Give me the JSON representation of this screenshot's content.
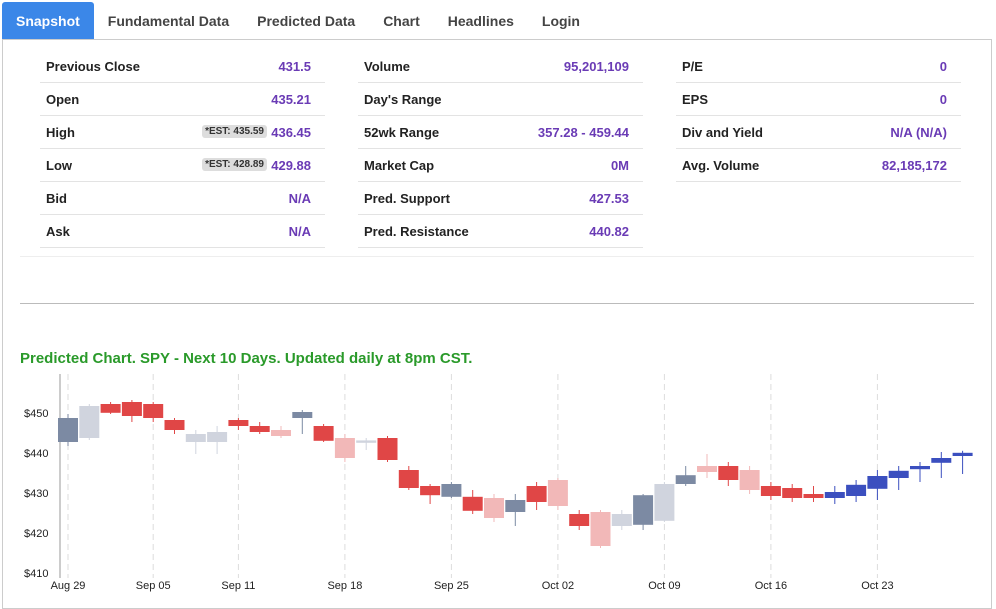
{
  "tabs": [
    "Snapshot",
    "Fundamental Data",
    "Predicted Data",
    "Chart",
    "Headlines",
    "Login"
  ],
  "active_tab": 0,
  "stats": [
    [
      {
        "label": "Previous Close",
        "value": "431.5"
      },
      {
        "label": "Open",
        "value": "435.21"
      },
      {
        "label": "High",
        "value": "436.45",
        "badge": "*EST: 435.59"
      },
      {
        "label": "Low",
        "value": "429.88",
        "badge": "*EST: 428.89"
      },
      {
        "label": "Bid",
        "value": "N/A"
      },
      {
        "label": "Ask",
        "value": "N/A"
      }
    ],
    [
      {
        "label": "Volume",
        "value": "95,201,109"
      },
      {
        "label": "Day's Range",
        "value": ""
      },
      {
        "label": "52wk Range",
        "value": "357.28 - 459.44"
      },
      {
        "label": "Market Cap",
        "value": "0M"
      },
      {
        "label": "Pred. Support",
        "value": "427.53"
      },
      {
        "label": "Pred. Resistance",
        "value": "440.82"
      }
    ],
    [
      {
        "label": "P/E",
        "value": "0"
      },
      {
        "label": "EPS",
        "value": "0"
      },
      {
        "label": "Div and Yield",
        "value": "N/A (N/A)"
      },
      {
        "label": "Avg. Volume",
        "value": "82,185,172"
      }
    ]
  ],
  "chart_data": {
    "type": "candlestick",
    "title": "Predicted Chart. SPY - Next 10 Days. Updated daily at 8pm CST.",
    "categories": [
      "Aug 29",
      null,
      null,
      null,
      "Sep 05",
      null,
      null,
      null,
      "Sep 11",
      null,
      null,
      null,
      null,
      "Sep 18",
      null,
      null,
      null,
      null,
      "Sep 25",
      null,
      null,
      null,
      null,
      "Oct 02",
      null,
      null,
      null,
      null,
      "Oct 09",
      null,
      null,
      null,
      null,
      "Oct 16",
      null,
      null,
      null,
      null,
      "Oct 23",
      null,
      null,
      null,
      null
    ],
    "open": [
      443,
      444,
      452.5,
      453,
      452.5,
      448.5,
      443,
      443,
      448.5,
      447,
      446,
      449,
      447,
      444,
      442.8,
      444,
      436,
      432,
      429.3,
      429.3,
      429,
      425.5,
      432,
      433.5,
      425,
      425.5,
      422,
      422.3,
      423.3,
      432.5,
      437,
      437,
      436,
      432,
      431.5,
      430,
      429,
      429.5,
      431.3,
      434,
      436.2,
      437.8,
      439.5
    ],
    "high": [
      450,
      452.5,
      453,
      453.5,
      453,
      449,
      446,
      447,
      449,
      448,
      447,
      451,
      447.5,
      445,
      444,
      444.5,
      437,
      432.5,
      433,
      431,
      430,
      430,
      433,
      434,
      426,
      426,
      426,
      430,
      433,
      437,
      440,
      438,
      437,
      433,
      432.5,
      432,
      432,
      433.5,
      436,
      437,
      438,
      440.5,
      440.8
    ],
    "low": [
      442,
      443.5,
      450,
      448,
      448,
      445,
      440,
      440,
      446,
      445,
      444,
      445,
      443,
      438,
      441,
      438,
      431,
      427.5,
      429,
      425,
      423,
      422,
      426,
      426,
      421,
      416.5,
      421,
      421,
      423,
      432,
      434,
      432,
      430,
      428.5,
      428,
      428,
      427.5,
      428,
      428.5,
      431,
      433,
      434,
      435
    ],
    "close": [
      449,
      452,
      450.3,
      449.5,
      449,
      446,
      445,
      445.5,
      447,
      445.5,
      444.5,
      450.5,
      443.3,
      439,
      443.4,
      438.5,
      431.5,
      429.7,
      432.5,
      425.8,
      424,
      428.5,
      428,
      427,
      422,
      417,
      425,
      429.7,
      432.5,
      434.7,
      435.5,
      433.5,
      431,
      429.5,
      429,
      429,
      430.5,
      432.3,
      434.5,
      435.8,
      437,
      439,
      440.3
    ],
    "colors": [
      "#7c8aa3",
      "#d0d4de",
      "#e04646",
      "#e04646",
      "#e04646",
      "#e04646",
      "#d0d4de",
      "#d0d4de",
      "#e04646",
      "#e04646",
      "#f2b8b8",
      "#7c8aa3",
      "#e04646",
      "#f2b8b8",
      "#d0d4de",
      "#e04646",
      "#e04646",
      "#e04646",
      "#7c8aa3",
      "#e04646",
      "#f2b8b8",
      "#7c8aa3",
      "#e04646",
      "#f2b8b8",
      "#e04646",
      "#f2b8b8",
      "#d0d4de",
      "#7c8aa3",
      "#d0d4de",
      "#7c8aa3",
      "#f2b8b8",
      "#e04646",
      "#f2b8b8",
      "#e04646",
      "#e04646",
      "#e04646",
      "#3b4fbf",
      "#3b4fbf",
      "#3b4fbf",
      "#3b4fbf",
      "#3b4fbf",
      "#3b4fbf",
      "#3b4fbf"
    ],
    "ylim": [
      410,
      460
    ],
    "yticks": [
      {
        "value": 410,
        "label": "$410"
      },
      {
        "value": 420,
        "label": "$420"
      },
      {
        "value": 430,
        "label": "$430"
      },
      {
        "value": 440,
        "label": "$440"
      },
      {
        "value": 450,
        "label": "$450"
      }
    ],
    "grid": true
  }
}
